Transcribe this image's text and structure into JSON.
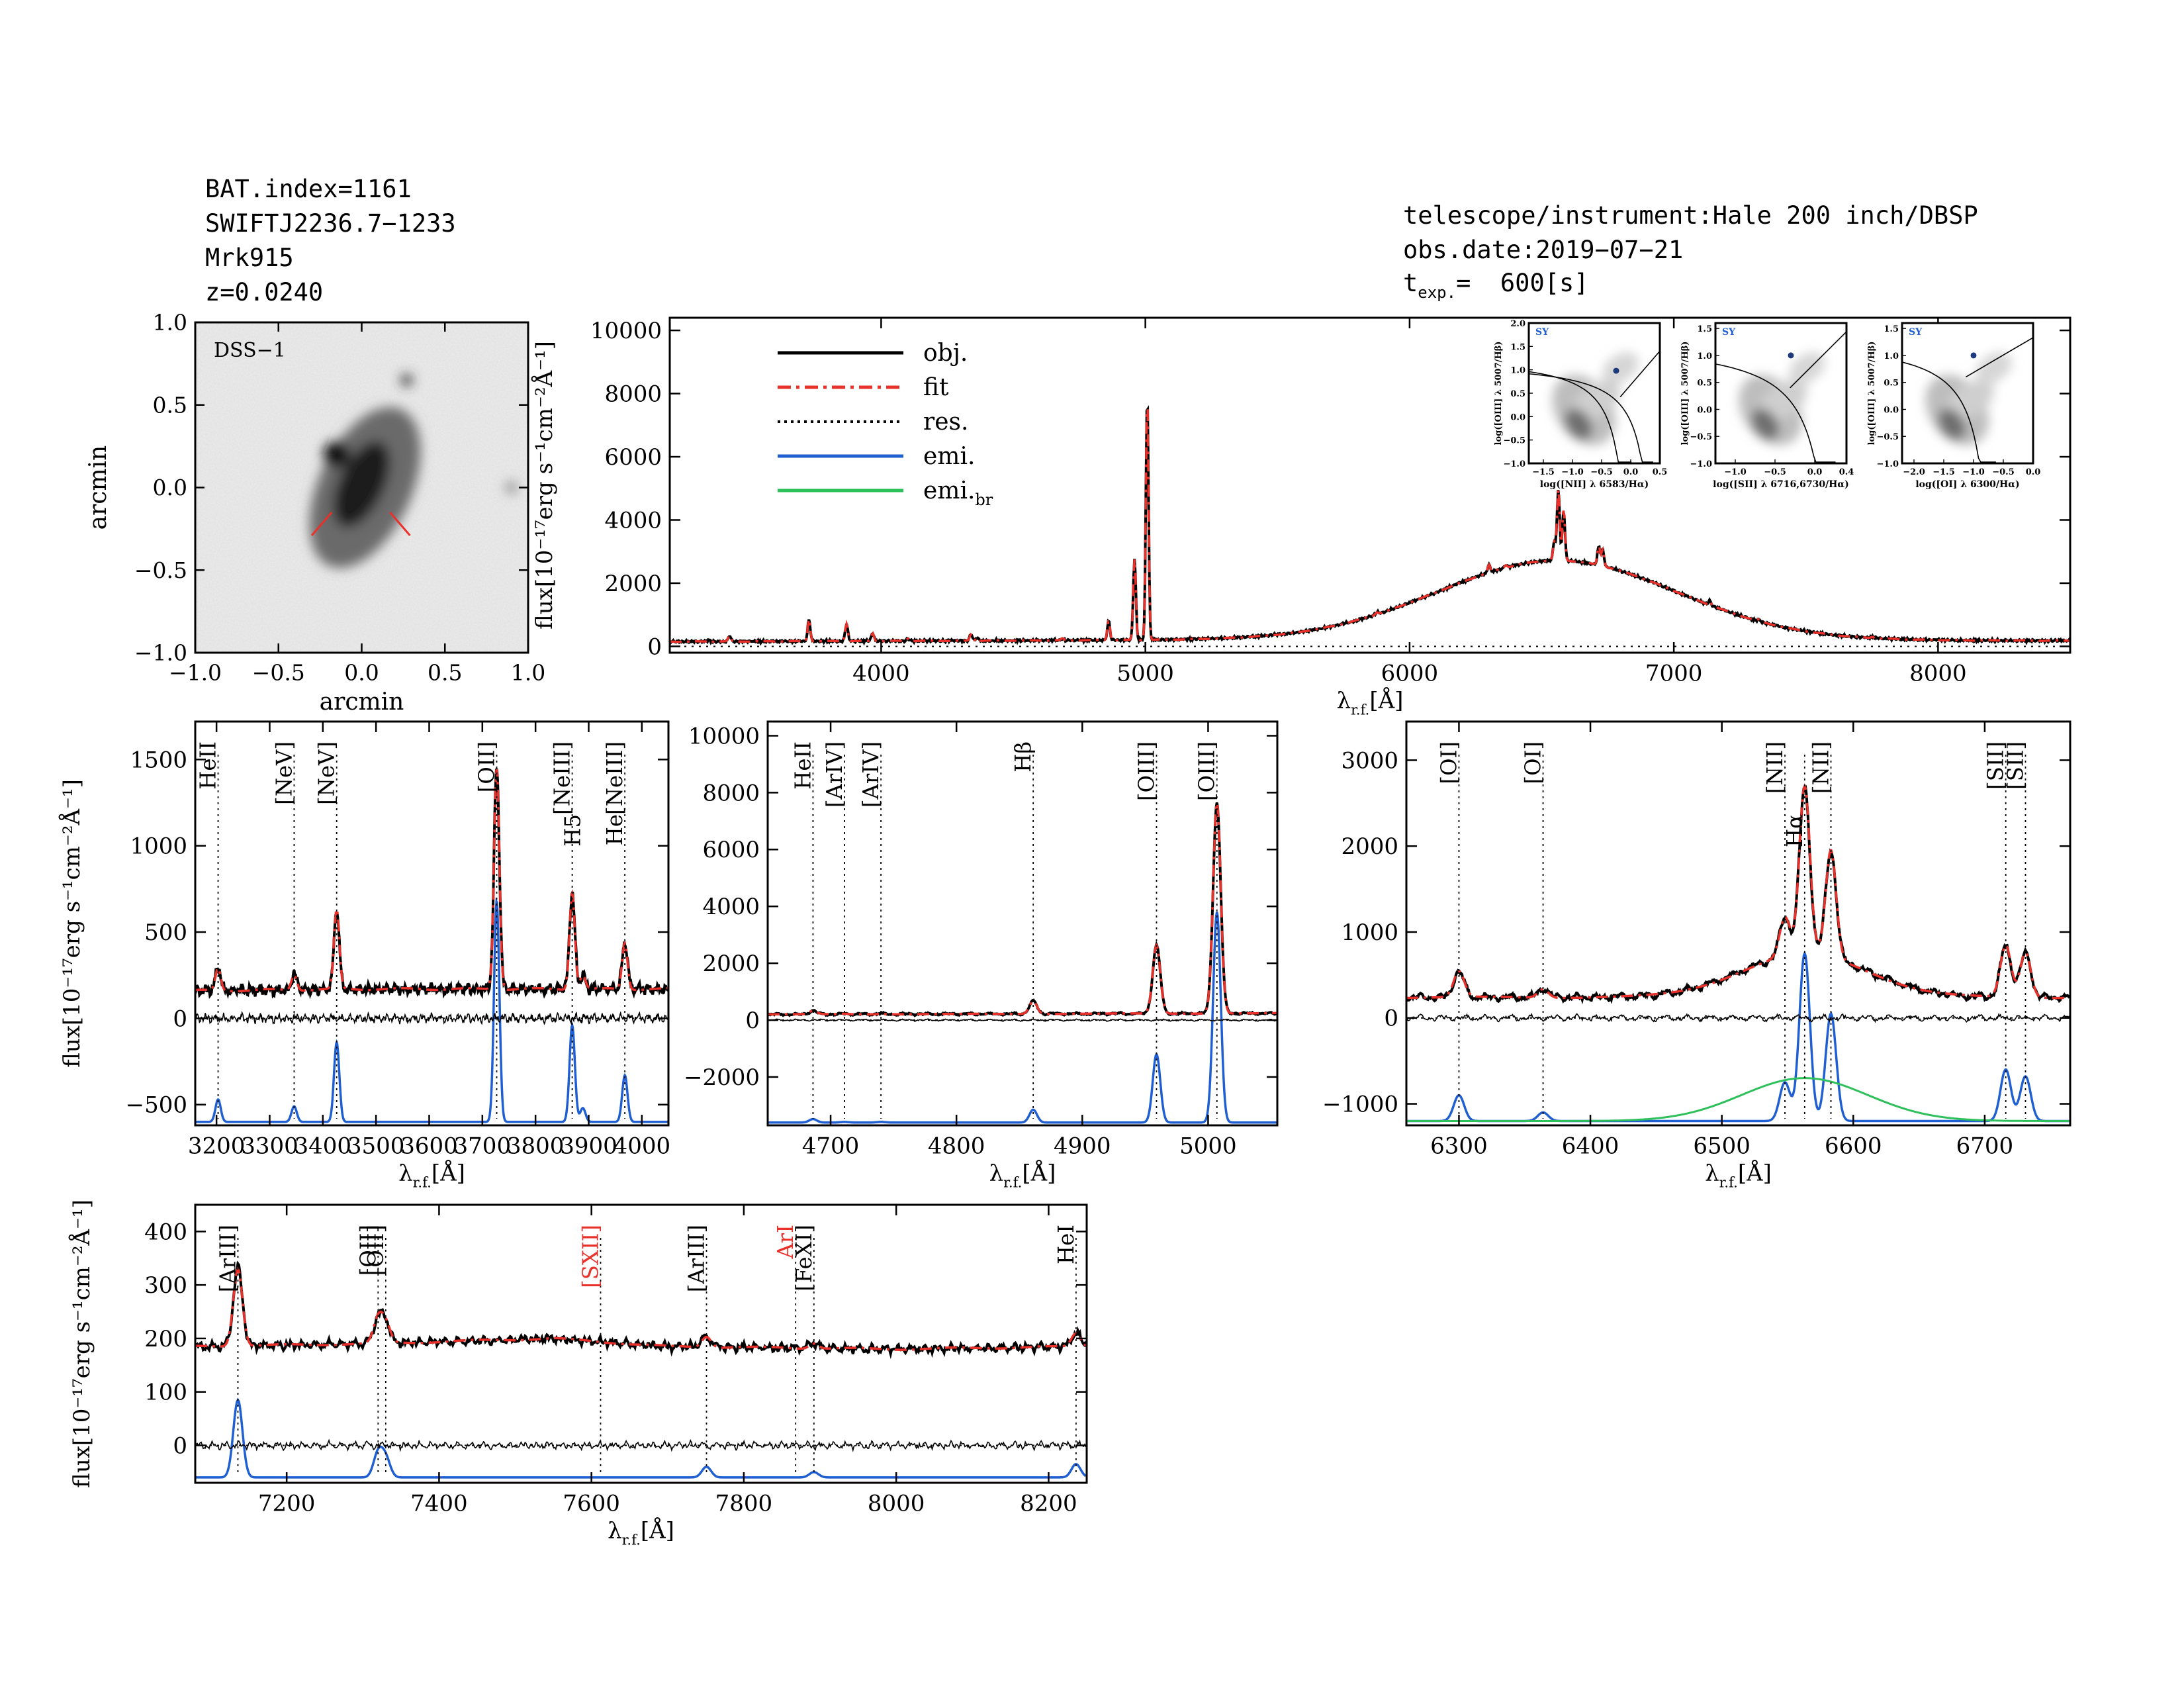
{
  "header_left": {
    "bat_index": "BAT.index=1161",
    "swift_name": "SWIFTJ2236.7−1233",
    "object": "Mrk915",
    "redshift": "z=0.0240"
  },
  "header_right": {
    "instrument": "telescope/instrument:Hale 200 inch/DBSP",
    "obs_date": "obs.date:2019−07−21",
    "t_exp_label": "t",
    "t_exp_sub": "exp.",
    "t_exp_value": "=  600[s]"
  },
  "colors": {
    "obj": "#000000",
    "fit": "#e8312a",
    "res": "#000000",
    "emi": "#1f5fd1",
    "emi_br": "#2ec05a",
    "image_bg": "#d9d9d9",
    "marker": "#e8312a"
  },
  "chart_data": [
    {
      "id": "image",
      "type": "image",
      "label": "DSS−1",
      "xlabel": "arcmin",
      "ylabel": "arcmin",
      "xlim": [
        -1.0,
        1.0
      ],
      "ylim": [
        -1.0,
        1.0
      ],
      "xticks": [
        "−1.0",
        "−0.5",
        "0.0",
        "0.5",
        "1.0"
      ],
      "yticks": [
        "1.0",
        "0.5",
        "0.0",
        "−0.5",
        "−1.0"
      ],
      "yticks_vals": [
        1.0,
        0.5,
        0.0,
        -0.5,
        -1.0
      ],
      "xticks_vals": [
        -1.0,
        -0.5,
        0.0,
        0.5,
        1.0
      ]
    },
    {
      "id": "full",
      "type": "line",
      "xlabel": "λ",
      "xlabel_sub": "r.f.",
      "xlabel_tail": "[Å]",
      "ylabel": "flux[10⁻¹⁷erg s⁻¹cm⁻²Å⁻¹]",
      "xlim": [
        3200,
        8500
      ],
      "ylim": [
        -200,
        10400
      ],
      "xticks": [
        4000,
        5000,
        6000,
        7000,
        8000
      ],
      "yticks": [
        0,
        2000,
        4000,
        6000,
        8000,
        10000
      ],
      "continuum": [
        [
          3200,
          150
        ],
        [
          4000,
          170
        ],
        [
          5000,
          200
        ],
        [
          6000,
          240
        ],
        [
          7000,
          200
        ],
        [
          8500,
          180
        ]
      ],
      "lines": [
        [
          3346,
          40
        ],
        [
          3426,
          180
        ],
        [
          3727,
          700
        ],
        [
          3869,
          550
        ],
        [
          3968,
          250
        ],
        [
          4102,
          80
        ],
        [
          4340,
          200
        ],
        [
          4363,
          100
        ],
        [
          4686,
          60
        ],
        [
          4861,
          620
        ],
        [
          4959,
          2550
        ],
        [
          5007,
          7700
        ],
        [
          5876,
          70
        ],
        [
          6300,
          240
        ],
        [
          6364,
          80
        ],
        [
          6548,
          600
        ],
        [
          6563,
          2250
        ],
        [
          6583,
          1600
        ],
        [
          6716,
          600
        ],
        [
          6731,
          520
        ],
        [
          7136,
          130
        ],
        [
          7320,
          50
        ],
        [
          7751,
          40
        ]
      ],
      "broad": [
        [
          6563,
          2500,
          450
        ]
      ],
      "legend": [
        {
          "label": "obj.",
          "style": "obj"
        },
        {
          "label": "fit",
          "style": "fit"
        },
        {
          "label": "res.",
          "style": "res"
        },
        {
          "label": "emi.",
          "style": "emi"
        },
        {
          "label": "emi.",
          "sub": "br",
          "style": "emi_br"
        }
      ]
    },
    {
      "id": "p1",
      "type": "line",
      "xlabel": "λ",
      "xlabel_sub": "r.f.",
      "xlabel_tail": "[Å]",
      "ylabel": "flux[10⁻¹⁷erg s⁻¹cm⁻²Å⁻¹]",
      "xlim": [
        3160,
        4050
      ],
      "ylim": [
        -620,
        1720
      ],
      "xticks": [
        3200,
        3300,
        3400,
        3500,
        3600,
        3700,
        3800,
        3900,
        4000
      ],
      "yticks": [
        -500,
        0,
        500,
        1000,
        1500
      ],
      "emi_offset": -600,
      "continuum": [
        [
          3160,
          160
        ],
        [
          3500,
          170
        ],
        [
          4050,
          170
        ]
      ],
      "lines": [
        [
          3203,
          130
        ],
        [
          3346,
          90
        ],
        [
          3426,
          460
        ],
        [
          3727,
          1280
        ],
        [
          3869,
          560
        ],
        [
          3889,
          80
        ],
        [
          3968,
          270
        ]
      ],
      "lines_w": 5,
      "labels": [
        {
          "x": 3203,
          "text": "HeII",
          "bracket": false,
          "dotted": true
        },
        {
          "x": 3346,
          "text": "NeV",
          "bracket": true,
          "dotted": true
        },
        {
          "x": 3426,
          "text": "NeV",
          "bracket": true,
          "dotted": true
        },
        {
          "x": 3727,
          "text": "OII",
          "bracket": true,
          "dotted": true
        },
        {
          "x": 3869,
          "text": "NeIII",
          "bracket": true,
          "dotted": true
        },
        {
          "x": 3889,
          "text": "H5",
          "bracket": false,
          "dotted": false,
          "low": true
        },
        {
          "x": 3968,
          "text": "NeIII",
          "bracket": true,
          "dotted": true
        },
        {
          "x": 3968,
          "text": "He",
          "bracket": false,
          "dotted": false,
          "low": true
        }
      ]
    },
    {
      "id": "p2",
      "type": "line",
      "xlabel": "λ",
      "xlabel_sub": "r.f.",
      "xlabel_tail": "[Å]",
      "ylabel": "",
      "xlim": [
        4650,
        5055
      ],
      "ylim": [
        -3700,
        10500
      ],
      "xticks": [
        4700,
        4800,
        4900,
        5000
      ],
      "yticks": [
        -2000,
        0,
        2000,
        4000,
        6000,
        8000,
        10000
      ],
      "emi_offset": -3600,
      "continuum": [
        [
          4650,
          200
        ],
        [
          5055,
          240
        ]
      ],
      "lines": [
        [
          4686,
          120
        ],
        [
          4711,
          20
        ],
        [
          4740,
          20
        ],
        [
          4861,
          450
        ],
        [
          4959,
          2400
        ],
        [
          5007,
          7400
        ]
      ],
      "lines_w": 3,
      "labels": [
        {
          "x": 4686,
          "text": "HeII",
          "bracket": false,
          "dotted": true
        },
        {
          "x": 4711,
          "text": "ArIV",
          "bracket": true,
          "dotted": true
        },
        {
          "x": 4740,
          "text": "ArIV",
          "bracket": true,
          "dotted": true
        },
        {
          "x": 4861,
          "text": "Hβ",
          "bracket": false,
          "dotted": true
        },
        {
          "x": 4959,
          "text": "OIII",
          "bracket": true,
          "dotted": true
        },
        {
          "x": 5007,
          "text": "OIII",
          "bracket": true,
          "dotted": true
        }
      ]
    },
    {
      "id": "p3",
      "type": "line",
      "xlabel": "λ",
      "xlabel_sub": "r.f.",
      "xlabel_tail": "[Å]",
      "ylabel": "",
      "xlim": [
        6260,
        6765
      ],
      "ylim": [
        -1250,
        3450
      ],
      "xticks": [
        6300,
        6400,
        6500,
        6600,
        6700
      ],
      "yticks": [
        -1000,
        0,
        1000,
        2000,
        3000
      ],
      "emi_offset": -1200,
      "continuum": [
        [
          6260,
          240
        ],
        [
          6765,
          240
        ]
      ],
      "lines": [
        [
          6300,
          300
        ],
        [
          6364,
          100
        ],
        [
          6548,
          450
        ],
        [
          6563,
          1950
        ],
        [
          6583,
          1250
        ],
        [
          6716,
          600
        ],
        [
          6731,
          520
        ]
      ],
      "broad": [
        [
          6563,
          500,
          48
        ]
      ],
      "lines_w": 4,
      "labels": [
        {
          "x": 6300,
          "text": "OI",
          "bracket": true,
          "dotted": true
        },
        {
          "x": 6364,
          "text": "OI",
          "bracket": true,
          "dotted": true
        },
        {
          "x": 6548,
          "text": "NII",
          "bracket": true,
          "dotted": true
        },
        {
          "x": 6563,
          "text": "Hα",
          "bracket": false,
          "dotted": true,
          "low": true
        },
        {
          "x": 6583,
          "text": "NII",
          "bracket": true,
          "dotted": true
        },
        {
          "x": 6716,
          "text": "SII",
          "bracket": true,
          "dotted": true
        },
        {
          "x": 6731,
          "text": "SII",
          "bracket": true,
          "dotted": true
        }
      ]
    },
    {
      "id": "p4",
      "type": "line",
      "xlabel": "λ",
      "xlabel_sub": "r.f.",
      "xlabel_tail": "[Å]",
      "ylabel": "flux[10⁻¹⁷erg s⁻¹cm⁻²Å⁻¹]",
      "xlim": [
        7080,
        8250
      ],
      "ylim": [
        -70,
        450
      ],
      "xticks": [
        7200,
        7400,
        7600,
        7800,
        8000,
        8200
      ],
      "yticks": [
        0,
        100,
        200,
        300,
        400
      ],
      "emi_offset": -60,
      "continuum": [
        [
          7080,
          185
        ],
        [
          7300,
          190
        ],
        [
          7550,
          200
        ],
        [
          7700,
          185
        ],
        [
          8000,
          180
        ],
        [
          8250,
          185
        ]
      ],
      "lines": [
        [
          7136,
          145
        ],
        [
          7320,
          45
        ],
        [
          7330,
          35
        ],
        [
          7751,
          20
        ],
        [
          7892,
          10
        ],
        [
          8236,
          25
        ]
      ],
      "lines_w": 6,
      "labels": [
        {
          "x": 7136,
          "text": "ArIII",
          "bracket": true,
          "dotted": true
        },
        {
          "x": 7320,
          "text": "OII",
          "bracket": true,
          "dotted": true
        },
        {
          "x": 7330,
          "text": "OII",
          "bracket": true,
          "dotted": true
        },
        {
          "x": 7612,
          "text": "SXII",
          "bracket": true,
          "dotted": true,
          "red": true
        },
        {
          "x": 7751,
          "text": "ArIII",
          "bracket": true,
          "dotted": true
        },
        {
          "x": 7868,
          "text": "ArI",
          "bracket": false,
          "dotted": true,
          "red": true
        },
        {
          "x": 7892,
          "text": "FeXI",
          "bracket": true,
          "dotted": true
        },
        {
          "x": 8236,
          "text": "HeI",
          "bracket": false,
          "dotted": true
        }
      ]
    },
    {
      "id": "bpt1",
      "type": "scatter",
      "label": "SY",
      "xlabel": "log([NII] λ 6583/Hα)",
      "ylabel": "log([OIII] λ 5007/Hβ)",
      "xlim": [
        -1.75,
        0.5
      ],
      "ylim": [
        -1.0,
        2.0
      ],
      "xticks": [
        "−1.5",
        "−1.0",
        "−0.5",
        "0.0",
        "0.5"
      ],
      "xticks_vals": [
        -1.5,
        -1.0,
        -0.5,
        0.0,
        0.5
      ],
      "yticks": [
        "−1.0",
        "−0.5",
        "0.0",
        "0.5",
        "1.0",
        "1.5",
        "2.0"
      ],
      "yticks_vals": [
        -1.0,
        -0.5,
        0.0,
        0.5,
        1.0,
        1.5,
        2.0
      ],
      "point": [
        -0.25,
        0.98
      ]
    },
    {
      "id": "bpt2",
      "type": "scatter",
      "label": "SY",
      "xlabel": "log([SII] λ 6716,6730/Hα)",
      "ylabel": "log([OIII] λ 5007/Hβ)",
      "xlim": [
        -1.25,
        0.4
      ],
      "ylim": [
        -1.0,
        1.6
      ],
      "xticks": [
        "−1.0",
        "−0.5",
        "0.0",
        "0.4"
      ],
      "xticks_vals": [
        -1.0,
        -0.5,
        0.0,
        0.4
      ],
      "yticks": [
        "−1.0",
        "−0.5",
        "0.0",
        "0.5",
        "1.0",
        "1.5"
      ],
      "yticks_vals": [
        -1.0,
        -0.5,
        0.0,
        0.5,
        1.0,
        1.5
      ],
      "point": [
        -0.3,
        1.0
      ]
    },
    {
      "id": "bpt3",
      "type": "scatter",
      "label": "SY",
      "xlabel": "log([OI] λ 6300/Hα)",
      "ylabel": "log([OIII] λ 5007/Hβ)",
      "xlim": [
        -2.2,
        0.0
      ],
      "ylim": [
        -1.0,
        1.6
      ],
      "xticks": [
        "−2.0",
        "−1.5",
        "−1.0",
        "−0.5",
        "0.0"
      ],
      "xticks_vals": [
        -2.0,
        -1.5,
        -1.0,
        -0.5,
        0.0
      ],
      "yticks": [
        "−1.0",
        "−0.5",
        "0.0",
        "0.5",
        "1.0",
        "1.5"
      ],
      "yticks_vals": [
        -1.0,
        -0.5,
        0.0,
        0.5,
        1.0,
        1.5
      ],
      "point": [
        -1.0,
        1.0
      ]
    }
  ]
}
